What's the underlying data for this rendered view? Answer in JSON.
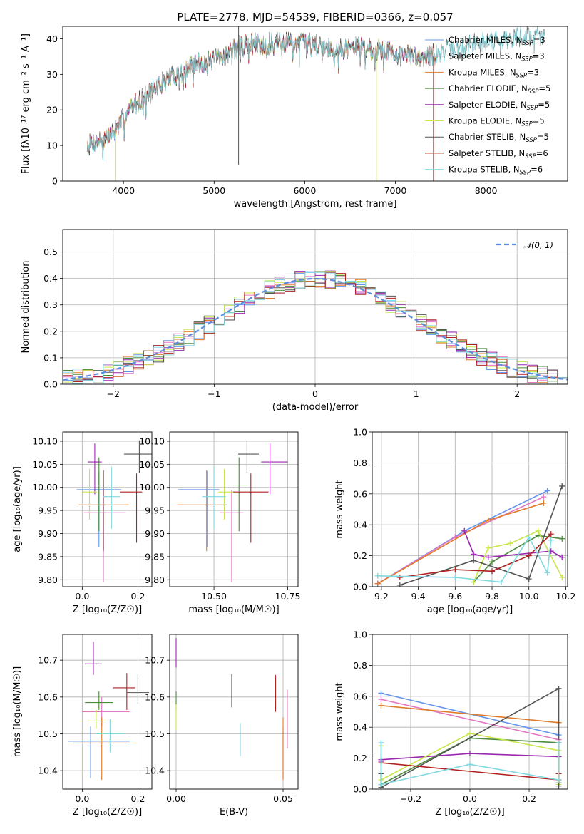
{
  "title": "PLATE=2778, MJD=54539, FIBERID=0366, z=0.057",
  "colors": {
    "Chabrier MILES": "#6495ed",
    "Salpeter MILES": "#e377c2",
    "Kroupa MILES": "#e07b2a",
    "Chabrier ELODIE": "#4b8b3b",
    "Salpeter ELODIE": "#9c27b0",
    "Kroupa ELODIE": "#c8e64c",
    "Chabrier STELIB": "#555555",
    "Salpeter STELIB": "#b22222",
    "Kroupa STELIB": "#80d8e0"
  },
  "chart_data": [
    {
      "id": "spectrum",
      "type": "line",
      "title": "PLATE=2778, MJD=54539, FIBERID=0366, z=0.057",
      "xlabel": "wavelength [Angstrom, rest frame]",
      "ylabel": "Flux [fλ10⁻¹⁷ erg cm⁻² s⁻¹ A⁻¹]",
      "xlim": [
        3330,
        8900
      ],
      "ylim": [
        0,
        43.5
      ],
      "xticks": [
        4000,
        5000,
        6000,
        7000,
        8000
      ],
      "yticks": [
        0,
        10,
        20,
        30,
        40
      ],
      "grid": false,
      "legend_position": "lower-right",
      "legend": [
        {
          "label": "Chabrier MILES",
          "nssp": "3"
        },
        {
          "label": "Salpeter MILES",
          "nssp": "3"
        },
        {
          "label": "Kroupa MILES",
          "nssp": "3"
        },
        {
          "label": "Chabrier ELODIE",
          "nssp": "5"
        },
        {
          "label": "Salpeter ELODIE",
          "nssp": "5"
        },
        {
          "label": "Kroupa ELODIE",
          "nssp": "5"
        },
        {
          "label": "Chabrier STELIB",
          "nssp": "5"
        },
        {
          "label": "Salpeter STELIB",
          "nssp": "6"
        },
        {
          "label": "Kroupa STELIB",
          "nssp": "6"
        }
      ],
      "continuum": {
        "x": [
          3600,
          3700,
          3800,
          3900,
          4000,
          4100,
          4200,
          4300,
          4400,
          4500,
          4600,
          4800,
          5000,
          5100,
          5200,
          5300,
          5400,
          5600,
          5800,
          6000,
          6200,
          6400,
          6600,
          6800,
          7000,
          7200,
          7400,
          7600,
          7800,
          8000,
          8200,
          8400,
          8600
        ],
        "y": [
          10,
          11,
          12,
          14,
          18,
          21,
          23,
          25,
          27,
          29,
          30,
          33,
          34,
          35,
          37,
          38,
          38.5,
          38.5,
          39,
          39,
          38,
          37,
          38,
          37,
          36,
          35,
          35.5,
          37,
          38,
          39.5,
          40,
          40.5,
          41
        ]
      },
      "full_range_series": [
        "Chabrier STELIB",
        "Kroupa STELIB"
      ]
    },
    {
      "id": "residuals",
      "type": "histogram",
      "xlabel": "(data-model)/error",
      "ylabel": "Normed distribution",
      "xlim": [
        -2.5,
        2.5
      ],
      "ylim": [
        0,
        0.585
      ],
      "xticks": [
        -2,
        -1,
        0,
        1,
        2
      ],
      "yticks": [
        0.0,
        0.1,
        0.2,
        0.3,
        0.4,
        0.5
      ],
      "grid": true,
      "legend_position": "top-right",
      "legend": [
        {
          "label": "𝒩(0, 1)"
        }
      ],
      "bin_width": 0.1,
      "reference": "normal(0,1)"
    },
    {
      "id": "age-vs-z",
      "type": "errorbar",
      "xlabel": "Z [log₁₀(Z/Z☉)]",
      "ylabel": "age  [log₁₀(age/yr)]",
      "xlim": [
        -0.07,
        0.25
      ],
      "ylim": [
        9.785,
        10.12
      ],
      "xticks": [
        0.0,
        0.2
      ],
      "yticks": [
        9.8,
        9.85,
        9.9,
        9.95,
        10.0,
        10.05,
        10.1
      ],
      "grid": true,
      "points": [
        {
          "series": "Chabrier MILES",
          "x": 0.06,
          "y": 9.995,
          "xerr": [
            0.08,
            0.08
          ],
          "yerr": [
            0.125,
            0.04
          ]
        },
        {
          "series": "Salpeter MILES",
          "x": 0.076,
          "y": 9.945,
          "xerr": [
            0.07,
            0.08
          ],
          "yerr": [
            0.15,
            0.05
          ]
        },
        {
          "series": "Kroupa MILES",
          "x": 0.077,
          "y": 9.962,
          "xerr": [
            0.09,
            0.09
          ],
          "yerr": [
            0.1,
            0.075
          ]
        },
        {
          "series": "Chabrier ELODIE",
          "x": 0.06,
          "y": 10.005,
          "xerr": [
            0.055,
            0.07
          ],
          "yerr": [
            0.1,
            0.06
          ]
        },
        {
          "series": "Salpeter ELODIE",
          "x": 0.045,
          "y": 10.055,
          "xerr": [
            0.025,
            0.025
          ],
          "yerr": [
            0.07,
            0.04
          ]
        },
        {
          "series": "Kroupa ELODIE",
          "x": 0.026,
          "y": 9.99,
          "xerr": [
            0.025,
            0.027
          ],
          "yerr": [
            0.06,
            0.05
          ]
        },
        {
          "series": "Chabrier STELIB",
          "x": 0.205,
          "y": 10.072,
          "xerr": [
            0.055,
            0.045
          ],
          "yerr": [
            0.04,
            0.03
          ]
        },
        {
          "series": "Salpeter STELIB",
          "x": 0.195,
          "y": 9.99,
          "xerr": [
            0.06,
            0.02
          ],
          "yerr": [
            0.11,
            0.04
          ]
        },
        {
          "series": "Kroupa STELIB",
          "x": 0.105,
          "y": 9.98,
          "xerr": [
            0.03,
            0.03
          ],
          "yerr": [
            0.07,
            0.065
          ]
        }
      ]
    },
    {
      "id": "age-vs-mass",
      "type": "errorbar",
      "xlabel": "mass [log₁₀(M/M☉)]",
      "xlim": [
        10.35,
        10.785
      ],
      "ylim": [
        9.785,
        10.12
      ],
      "xticks": [
        10.5,
        10.75
      ],
      "yticks": [
        9.8,
        9.85,
        9.9,
        9.95,
        10.0,
        10.05,
        10.1
      ],
      "grid": true,
      "points": [
        {
          "series": "Chabrier MILES",
          "x": 10.478,
          "y": 9.995,
          "xerr": [
            0.1,
            0.04
          ],
          "yerr": [
            0.125,
            0.04
          ]
        },
        {
          "series": "Salpeter MILES",
          "x": 10.56,
          "y": 9.945,
          "xerr": [
            0.04,
            0.04
          ],
          "yerr": [
            0.15,
            0.05
          ]
        },
        {
          "series": "Kroupa MILES",
          "x": 10.475,
          "y": 9.962,
          "xerr": [
            0.1,
            0.07
          ],
          "yerr": [
            0.1,
            0.075
          ]
        },
        {
          "series": "Chabrier ELODIE",
          "x": 10.585,
          "y": 10.005,
          "xerr": [
            0.02,
            0.03
          ],
          "yerr": [
            0.1,
            0.06
          ]
        },
        {
          "series": "Salpeter ELODIE",
          "x": 10.69,
          "y": 10.055,
          "xerr": [
            0.03,
            0.06
          ],
          "yerr": [
            0.07,
            0.04
          ]
        },
        {
          "series": "Kroupa ELODIE",
          "x": 10.535,
          "y": 9.99,
          "xerr": [
            0.02,
            0.03
          ],
          "yerr": [
            0.06,
            0.05
          ]
        },
        {
          "series": "Chabrier STELIB",
          "x": 10.612,
          "y": 10.072,
          "xerr": [
            0.03,
            0.04
          ],
          "yerr": [
            0.04,
            0.03
          ]
        },
        {
          "series": "Salpeter STELIB",
          "x": 10.625,
          "y": 9.99,
          "xerr": [
            0.06,
            0.06
          ],
          "yerr": [
            0.11,
            0.04
          ]
        },
        {
          "series": "Kroupa STELIB",
          "x": 10.5,
          "y": 9.98,
          "xerr": [
            0.04,
            0.04
          ],
          "yerr": [
            0.07,
            0.065
          ]
        }
      ]
    },
    {
      "id": "weight-vs-age",
      "type": "line",
      "xlabel": "age  [log₁₀(age/yr)]",
      "ylabel": "mass weight",
      "xlim": [
        9.15,
        10.21
      ],
      "ylim": [
        0,
        1
      ],
      "xticks": [
        9.2,
        9.4,
        9.6,
        9.8,
        10.0,
        10.2
      ],
      "yticks": [
        0.0,
        0.2,
        0.4,
        0.6,
        0.8,
        1.0
      ],
      "grid": true,
      "series": [
        {
          "name": "Chabrier MILES",
          "x": [
            9.18,
            9.65,
            10.1
          ],
          "y": [
            0.02,
            0.36,
            0.62
          ]
        },
        {
          "name": "Salpeter MILES",
          "x": [
            9.18,
            9.6,
            10.08
          ],
          "y": [
            0.02,
            0.32,
            0.58
          ]
        },
        {
          "name": "Kroupa MILES",
          "x": [
            9.18,
            9.78,
            10.08
          ],
          "y": [
            0.02,
            0.43,
            0.54
          ]
        },
        {
          "name": "Chabrier ELODIE",
          "x": [
            9.7,
            9.8,
            10.05,
            10.18
          ],
          "y": [
            0.03,
            0.16,
            0.33,
            0.31
          ]
        },
        {
          "name": "Salpeter ELODIE",
          "x": [
            9.65,
            9.7,
            9.78,
            10.12,
            10.18
          ],
          "y": [
            0.36,
            0.21,
            0.19,
            0.23,
            0.19
          ]
        },
        {
          "name": "Kroupa ELODIE",
          "x": [
            9.7,
            9.78,
            9.9,
            10.05,
            10.18
          ],
          "y": [
            0.03,
            0.25,
            0.28,
            0.36,
            0.06
          ]
        },
        {
          "name": "Chabrier STELIB",
          "x": [
            9.3,
            9.7,
            10.0,
            10.18
          ],
          "y": [
            0.01,
            0.17,
            0.05,
            0.65
          ]
        },
        {
          "name": "Salpeter STELIB",
          "x": [
            9.3,
            9.6,
            9.8,
            10.0,
            10.12
          ],
          "y": [
            0.06,
            0.11,
            0.1,
            0.2,
            0.34
          ]
        },
        {
          "name": "Kroupa STELIB",
          "x": [
            9.18,
            9.6,
            9.85,
            10.0,
            10.1,
            10.12
          ],
          "y": [
            0.07,
            0.06,
            0.03,
            0.32,
            0.09,
            0.3
          ]
        }
      ]
    },
    {
      "id": "mass-vs-z",
      "type": "errorbar",
      "xlabel": "Z [log₁₀(Z/Z☉)]",
      "ylabel": "mass [log₁₀(M/M☉)]",
      "xlim": [
        -0.07,
        0.25
      ],
      "ylim": [
        10.35,
        10.77
      ],
      "xticks": [
        0.0,
        0.2
      ],
      "yticks": [
        10.4,
        10.5,
        10.6,
        10.7
      ],
      "grid": true,
      "points": [
        {
          "series": "Chabrier MILES",
          "x": 0.03,
          "y": 10.48,
          "xerr": [
            0.08,
            0.14
          ],
          "yerr": [
            0.1,
            0.04
          ]
        },
        {
          "series": "Salpeter MILES",
          "x": 0.07,
          "y": 10.56,
          "xerr": [
            0.07,
            0.1
          ],
          "yerr": [
            0.04,
            0.04
          ]
        },
        {
          "series": "Kroupa MILES",
          "x": 0.07,
          "y": 10.475,
          "xerr": [
            0.1,
            0.1
          ],
          "yerr": [
            0.1,
            0.07
          ]
        },
        {
          "series": "Chabrier ELODIE",
          "x": 0.06,
          "y": 10.585,
          "xerr": [
            0.05,
            0.05
          ],
          "yerr": [
            0.02,
            0.03
          ]
        },
        {
          "series": "Salpeter ELODIE",
          "x": 0.04,
          "y": 10.69,
          "xerr": [
            0.03,
            0.03
          ],
          "yerr": [
            0.03,
            0.06
          ]
        },
        {
          "series": "Kroupa ELODIE",
          "x": 0.05,
          "y": 10.535,
          "xerr": [
            0.03,
            0.03
          ],
          "yerr": [
            0.02,
            0.03
          ]
        },
        {
          "series": "Chabrier STELIB",
          "x": 0.2,
          "y": 10.612,
          "xerr": [
            0.04,
            0.04
          ],
          "yerr": [
            0.03,
            0.05
          ]
        },
        {
          "series": "Salpeter STELIB",
          "x": 0.16,
          "y": 10.625,
          "xerr": [
            0.05,
            0.03
          ],
          "yerr": [
            0.06,
            0.04
          ]
        },
        {
          "series": "Kroupa STELIB",
          "x": 0.1,
          "y": 10.5,
          "xerr": [
            0.05,
            0.05
          ],
          "yerr": [
            0.05,
            0.04
          ]
        }
      ]
    },
    {
      "id": "mass-vs-ebv",
      "type": "errorbar",
      "xlabel": "E(B-V)",
      "xlim": [
        -0.003,
        0.057
      ],
      "ylim": [
        10.35,
        10.77
      ],
      "xticks": [
        0.0,
        0.05
      ],
      "yticks": [
        10.4,
        10.5,
        10.6,
        10.7
      ],
      "grid": true,
      "points": [
        {
          "series": "Chabrier MILES",
          "x": 0.05,
          "y": 10.48,
          "xerr": [
            0,
            0
          ],
          "yerr": [
            0.1,
            0.04
          ]
        },
        {
          "series": "Salpeter MILES",
          "x": 0.052,
          "y": 10.56,
          "xerr": [
            0,
            0
          ],
          "yerr": [
            0.1,
            0.06
          ]
        },
        {
          "series": "Kroupa MILES",
          "x": 0.05,
          "y": 10.475,
          "xerr": [
            0,
            0
          ],
          "yerr": [
            0.1,
            0.07
          ]
        },
        {
          "series": "Chabrier ELODIE",
          "x": 0.0,
          "y": 10.585,
          "xerr": [
            0,
            0
          ],
          "yerr": [
            0.02,
            0.03
          ]
        },
        {
          "series": "Salpeter ELODIE",
          "x": 0.0,
          "y": 10.71,
          "xerr": [
            0,
            0
          ],
          "yerr": [
            0.03,
            0.05
          ]
        },
        {
          "series": "Kroupa ELODIE",
          "x": 0.0,
          "y": 10.53,
          "xerr": [
            0,
            0
          ],
          "yerr": [
            0.02,
            0.05
          ]
        },
        {
          "series": "Chabrier STELIB",
          "x": 0.026,
          "y": 10.612,
          "xerr": [
            0,
            0
          ],
          "yerr": [
            0.04,
            0.05
          ]
        },
        {
          "series": "Salpeter STELIB",
          "x": 0.0465,
          "y": 10.61,
          "xerr": [
            0,
            0
          ],
          "yerr": [
            0.05,
            0.05
          ]
        },
        {
          "series": "Kroupa STELIB",
          "x": 0.03,
          "y": 10.49,
          "xerr": [
            0,
            0
          ],
          "yerr": [
            0.05,
            0.04
          ]
        }
      ]
    },
    {
      "id": "weight-vs-z",
      "type": "line",
      "xlabel": "Z [log₁₀(Z/Z☉)]",
      "ylabel": "mass weight",
      "xlim": [
        -0.33,
        0.33
      ],
      "ylim": [
        0,
        1
      ],
      "xticks": [
        -0.2,
        0.0,
        0.2
      ],
      "yticks": [
        0.0,
        0.2,
        0.4,
        0.6,
        0.8,
        1.0
      ],
      "grid": true,
      "series": [
        {
          "name": "Chabrier MILES",
          "x": [
            -0.3,
            0.3
          ],
          "y": [
            0.62,
            0.35
          ]
        },
        {
          "name": "Salpeter MILES",
          "x": [
            -0.3,
            0.3,
            0.3
          ],
          "y": [
            0.58,
            0.32,
            0.1
          ]
        },
        {
          "name": "Kroupa MILES",
          "x": [
            -0.3,
            0.3
          ],
          "y": [
            0.54,
            0.43
          ]
        },
        {
          "name": "Chabrier ELODIE",
          "x": [
            -0.3,
            0.0,
            0.3,
            0.3
          ],
          "y": [
            0.03,
            0.33,
            0.3,
            0.04
          ]
        },
        {
          "name": "Salpeter ELODIE",
          "x": [
            -0.3,
            -0.3,
            0.0,
            0.3
          ],
          "y": [
            0.18,
            0.19,
            0.23,
            0.21
          ]
        },
        {
          "name": "Kroupa ELODIE",
          "x": [
            -0.3,
            -0.3,
            0.0,
            0.3,
            0.3
          ],
          "y": [
            0.28,
            0.06,
            0.36,
            0.25,
            0.03
          ]
        },
        {
          "name": "Chabrier STELIB",
          "x": [
            -0.3,
            -0.3,
            0.3,
            0.3
          ],
          "y": [
            0.1,
            0.01,
            0.65,
            0.02
          ]
        },
        {
          "name": "Salpeter STELIB",
          "x": [
            -0.3,
            0.3,
            0.3
          ],
          "y": [
            0.17,
            0.06,
            0.1
          ]
        },
        {
          "name": "Kroupa STELIB",
          "x": [
            -0.3,
            -0.3,
            0.0,
            0.3,
            0.3
          ],
          "y": [
            0.3,
            0.03,
            0.16,
            0.06,
            0.3
          ]
        }
      ]
    }
  ]
}
